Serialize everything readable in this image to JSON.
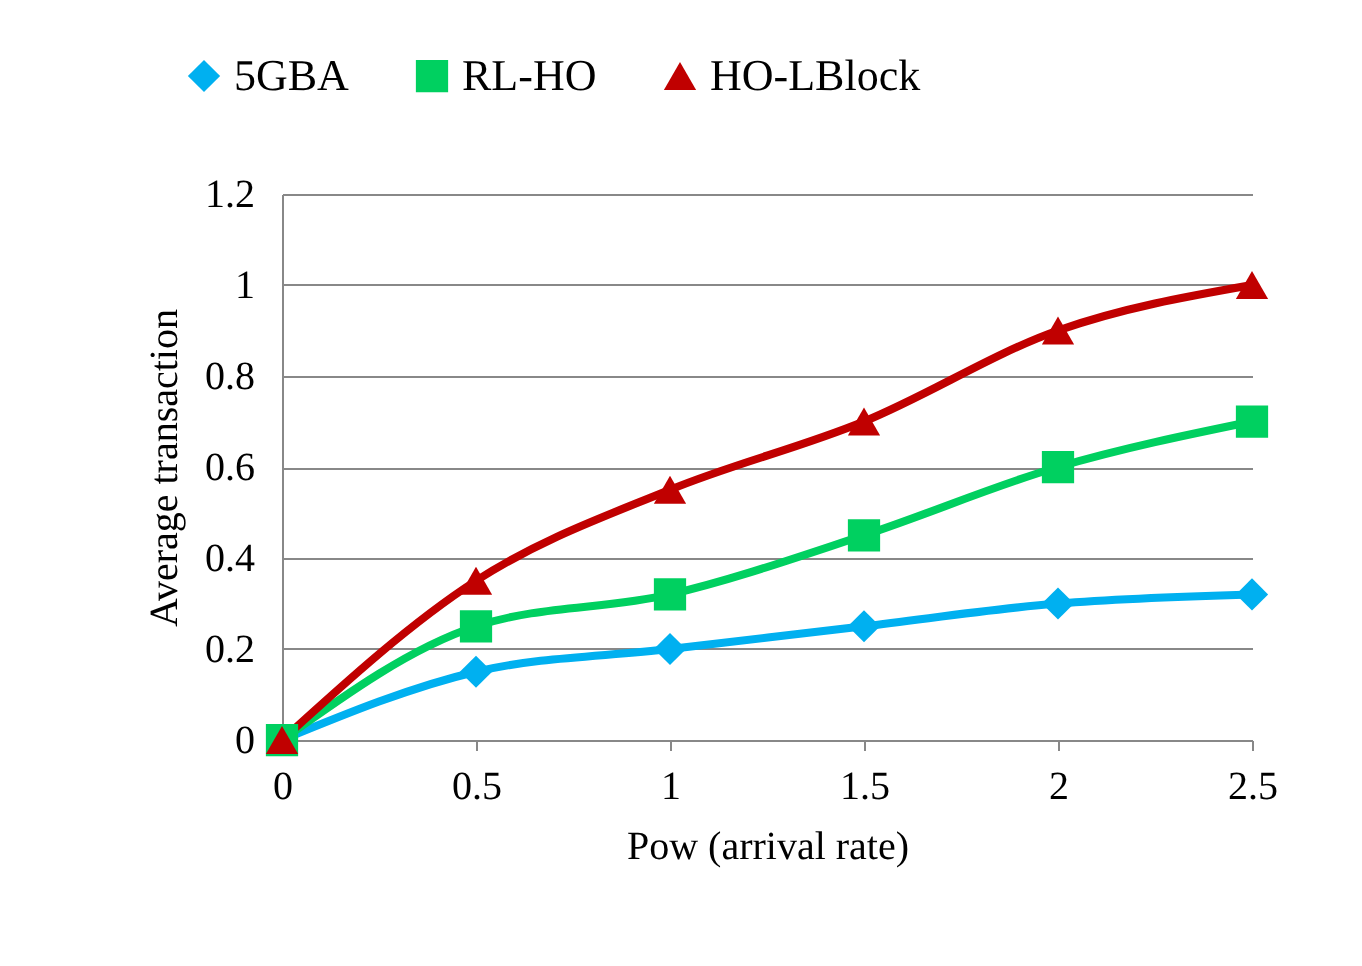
{
  "chart_data": {
    "type": "line",
    "xlabel": "Pow (arrival rate)",
    "ylabel": "Average transaction",
    "x": [
      0,
      0.5,
      1,
      1.5,
      2,
      2.5
    ],
    "series": [
      {
        "name": "5GBA",
        "color": "#00b0f0",
        "marker": "diamond",
        "values": [
          0,
          0.15,
          0.2,
          0.25,
          0.3,
          0.32
        ]
      },
      {
        "name": "RL-HO",
        "color": "#00d060",
        "marker": "square",
        "values": [
          0,
          0.25,
          0.32,
          0.45,
          0.6,
          0.7
        ]
      },
      {
        "name": "HO-LBlock",
        "color": "#c00000",
        "marker": "triangle",
        "values": [
          0,
          0.35,
          0.55,
          0.7,
          0.9,
          1.0
        ]
      }
    ],
    "xlim": [
      0,
      2.5
    ],
    "xticks": [
      0,
      0.5,
      1,
      1.5,
      2,
      2.5
    ],
    "ylim": [
      0,
      1.2
    ],
    "yticks": [
      0,
      0.2,
      0.4,
      0.6,
      0.8,
      1,
      1.2
    ],
    "grid": "y",
    "legend": "top",
    "line_style": "solid"
  }
}
